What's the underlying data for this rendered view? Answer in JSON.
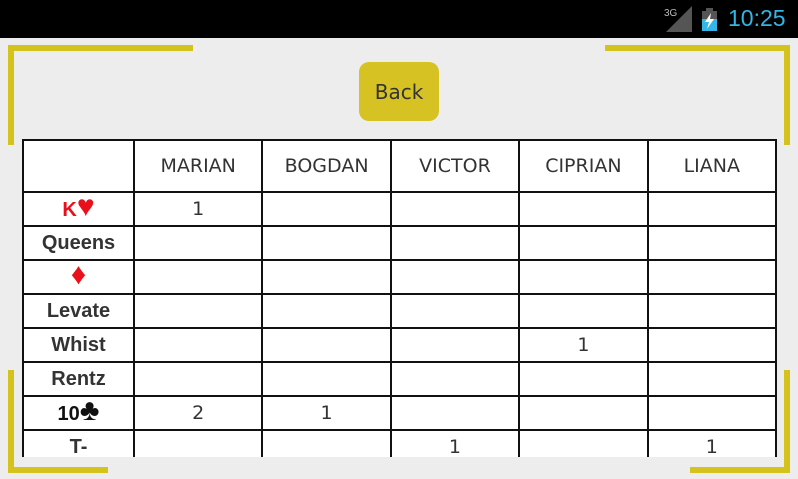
{
  "status_bar": {
    "network": "3G",
    "time": "10:25",
    "battery": "charging"
  },
  "back_label": "Back",
  "players": [
    "MARIAN",
    "BOGDAN",
    "VICTOR",
    "CIPRIAN",
    "LIANA"
  ],
  "rows": [
    {
      "label": "K",
      "suit": "♥",
      "color": "#e8101a",
      "values": [
        "1",
        "",
        "",
        "",
        ""
      ]
    },
    {
      "label": "Queens",
      "suit": "",
      "values": [
        "",
        "",
        "",
        "",
        ""
      ]
    },
    {
      "label": "",
      "suit": "♦",
      "color": "#e8101a",
      "values": [
        "",
        "",
        "",
        "",
        ""
      ]
    },
    {
      "label": "Levate",
      "suit": "",
      "values": [
        "",
        "",
        "",
        "",
        ""
      ]
    },
    {
      "label": "Whist",
      "suit": "",
      "values": [
        "",
        "",
        "",
        "1",
        ""
      ]
    },
    {
      "label": "Rentz",
      "suit": "",
      "values": [
        "",
        "",
        "",
        "",
        ""
      ]
    },
    {
      "label": "10",
      "suit": "♣",
      "color": "#111111",
      "values": [
        "2",
        "1",
        "",
        "",
        ""
      ]
    },
    {
      "label": "T-",
      "suit": "",
      "values": [
        "",
        "",
        "1",
        "",
        "1"
      ]
    }
  ],
  "colors": {
    "accent": "#d6c323",
    "clock": "#33b5e5"
  }
}
